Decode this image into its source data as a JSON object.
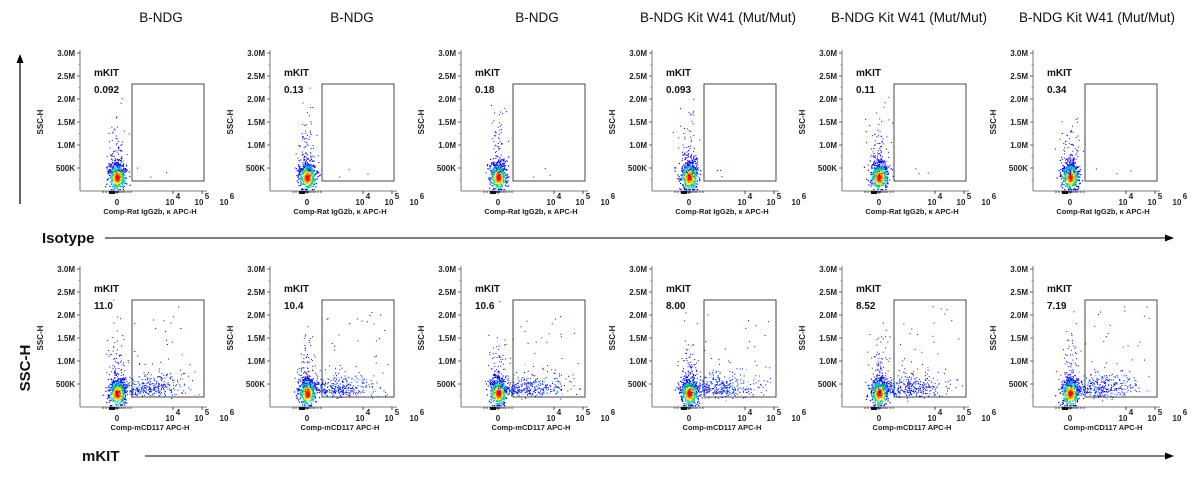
{
  "column_titles": [
    "B-NDG",
    "B-NDG",
    "B-NDG",
    "B-NDG Kit W41 (Mut/Mut)",
    "B-NDG Kit W41 (Mut/Mut)",
    "B-NDG Kit W41 (Mut/Mut)"
  ],
  "y_axis_title": "SSC-H",
  "row_labels": [
    "Isotype",
    "mKIT"
  ],
  "chart_data": {
    "type": "scatter",
    "subtype": "flow-cytometry density dot plot",
    "y_label": "SSC-H",
    "y_ticks": [
      "500K",
      "1.0M",
      "1.5M",
      "2.0M",
      "2.5M",
      "3.0M"
    ],
    "y_tick_values": [
      500000,
      1000000,
      1500000,
      2000000,
      2500000,
      3000000
    ],
    "ylim": [
      0,
      3000000
    ],
    "x_scale": "biexponential",
    "x_ticks": [
      {
        "base": "0",
        "exp": ""
      },
      {
        "base": "10",
        "exp": "4"
      },
      {
        "base": "10",
        "exp": "5"
      },
      {
        "base": "10",
        "exp": "6"
      }
    ],
    "gate_name": "mKIT",
    "rows": [
      {
        "label": "Isotype",
        "xlabel": "Comp-Rat IgG2b, κ APC-H",
        "gate_values": [
          "0.092",
          "0.13",
          "0.18",
          "0.093",
          "0.11",
          "0.34"
        ]
      },
      {
        "label": "mKIT",
        "xlabel": "Comp-mCD117 APC-H",
        "gate_values": [
          "11.0",
          "10.4",
          "10.6",
          "8.00",
          "8.52",
          "7.19"
        ]
      }
    ],
    "density_colors": [
      "#0000ff",
      "#00aaff",
      "#00dd66",
      "#ffee00",
      "#ff8800",
      "#ff0000"
    ]
  }
}
